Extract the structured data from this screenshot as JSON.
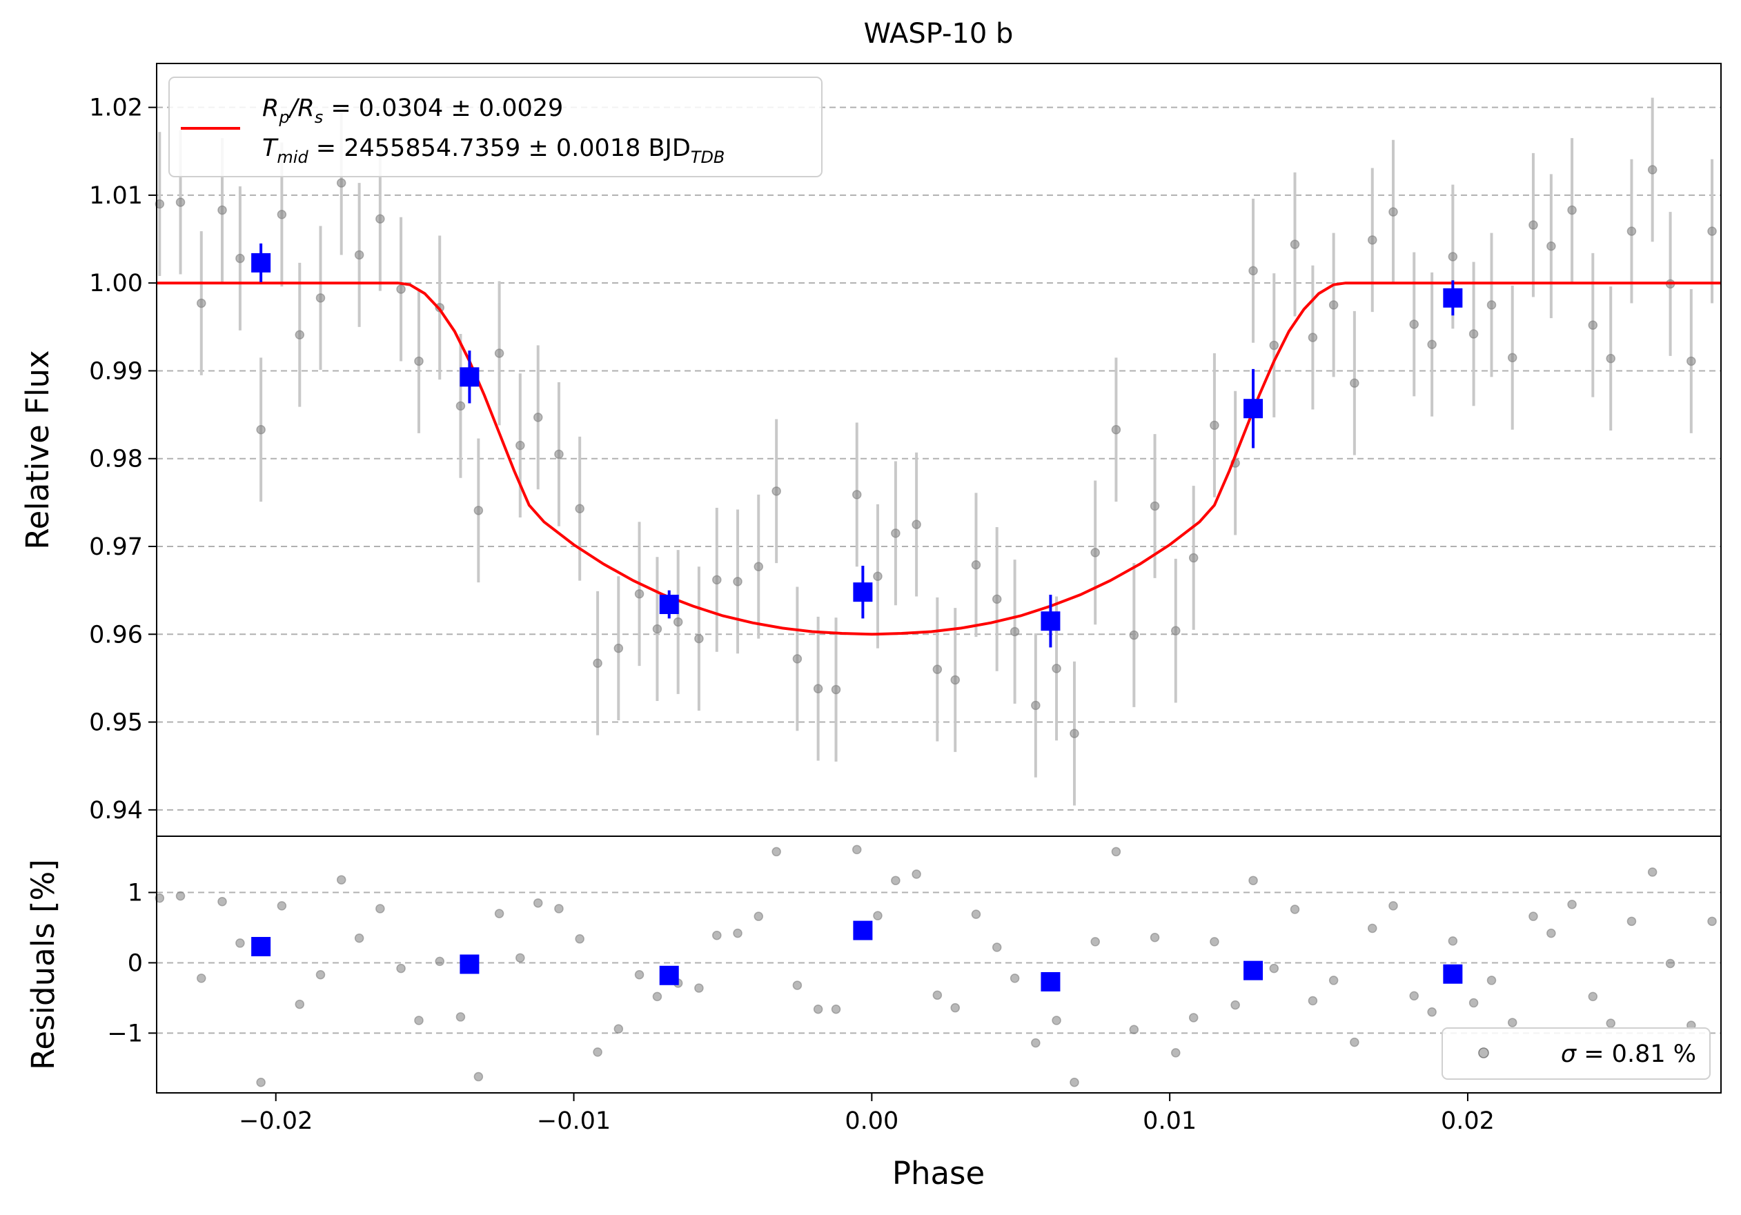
{
  "chart_data": [
    {
      "type": "scatter",
      "title": "WASP-10 b",
      "xlabel": "",
      "ylabel": "Relative Flux",
      "xlim": [
        -0.024,
        0.0285
      ],
      "ylim": [
        0.937,
        1.025
      ],
      "grid": "y-dashed",
      "legend_placement": "top-left",
      "legend": {
        "line1_prefix": "R",
        "line1_sub1": "p",
        "line1_mid": "/R",
        "line1_sub2": "s",
        "line1_value": " = 0.0304 ± 0.0029",
        "line2_prefix": "T",
        "line2_sub": "mid",
        "line2_value": " = 2455854.7359 ± 0.0018 BJD",
        "line2_unit_sub": "TDB"
      },
      "yticks": [
        "0.94",
        "0.95",
        "0.96",
        "0.97",
        "0.98",
        "0.99",
        "1.00",
        "1.01",
        "1.02"
      ],
      "ytick_values": [
        0.94,
        0.95,
        0.96,
        0.97,
        0.98,
        0.99,
        1.0,
        1.01,
        1.02
      ],
      "colors": {
        "raw": "#808080",
        "errorbar": "#c8c8c8",
        "binned": "#0000ff",
        "model": "#ff0000",
        "grid": "#b0b0b0"
      },
      "raw_error": 0.0082,
      "raw_points": [
        [
          -0.0239,
          1.009
        ],
        [
          -0.0232,
          1.0092
        ],
        [
          -0.0225,
          0.9977
        ],
        [
          -0.0218,
          1.0083
        ],
        [
          -0.0212,
          1.0028
        ],
        [
          -0.0205,
          0.9833
        ],
        [
          -0.0198,
          1.0078
        ],
        [
          -0.0192,
          0.9941
        ],
        [
          -0.0185,
          0.9983
        ],
        [
          -0.0178,
          1.0114
        ],
        [
          -0.0172,
          1.0032
        ],
        [
          -0.0165,
          1.0073
        ],
        [
          -0.0158,
          0.9993
        ],
        [
          -0.0152,
          0.9911
        ],
        [
          -0.0145,
          0.9972
        ],
        [
          -0.0138,
          0.986
        ],
        [
          -0.0132,
          0.9741
        ],
        [
          -0.0125,
          0.992
        ],
        [
          -0.0118,
          0.9815
        ],
        [
          -0.0112,
          0.9847
        ],
        [
          -0.0105,
          0.9805
        ],
        [
          -0.0098,
          0.9743
        ],
        [
          -0.0092,
          0.9567
        ],
        [
          -0.0085,
          0.9584
        ],
        [
          -0.0078,
          0.9646
        ],
        [
          -0.0072,
          0.9606
        ],
        [
          -0.0065,
          0.9614
        ],
        [
          -0.0058,
          0.9595
        ],
        [
          -0.0052,
          0.9662
        ],
        [
          -0.0045,
          0.966
        ],
        [
          -0.0038,
          0.9677
        ],
        [
          -0.0032,
          0.9763
        ],
        [
          -0.0025,
          0.9572
        ],
        [
          -0.0018,
          0.9538
        ],
        [
          -0.0012,
          0.9537
        ],
        [
          -0.0005,
          0.9759
        ],
        [
          0.0002,
          0.9666
        ],
        [
          0.0008,
          0.9715
        ],
        [
          0.0015,
          0.9725
        ],
        [
          0.0022,
          0.956
        ],
        [
          0.0028,
          0.9548
        ],
        [
          0.0035,
          0.9679
        ],
        [
          0.0042,
          0.964
        ],
        [
          0.0048,
          0.9603
        ],
        [
          0.0055,
          0.9519
        ],
        [
          0.0062,
          0.9561
        ],
        [
          0.0068,
          0.9487
        ],
        [
          0.0075,
          0.9693
        ],
        [
          0.0082,
          0.9833
        ],
        [
          0.0088,
          0.9599
        ],
        [
          0.0095,
          0.9746
        ],
        [
          0.0102,
          0.9604
        ],
        [
          0.0108,
          0.9687
        ],
        [
          0.0115,
          0.9838
        ],
        [
          0.0122,
          0.9795
        ],
        [
          0.0128,
          1.0014
        ],
        [
          0.0135,
          0.9929
        ],
        [
          0.0142,
          1.0044
        ],
        [
          0.0148,
          0.9938
        ],
        [
          0.0155,
          0.9975
        ],
        [
          0.0162,
          0.9886
        ],
        [
          0.0168,
          1.0049
        ],
        [
          0.0175,
          1.0081
        ],
        [
          0.0182,
          0.9953
        ],
        [
          0.0188,
          0.993
        ],
        [
          0.0195,
          1.003
        ],
        [
          0.0202,
          0.9942
        ],
        [
          0.0208,
          0.9975
        ],
        [
          0.0215,
          0.9915
        ],
        [
          0.0222,
          1.0066
        ],
        [
          0.0228,
          1.0042
        ],
        [
          0.0235,
          1.0083
        ],
        [
          0.0242,
          0.9952
        ],
        [
          0.0248,
          0.9914
        ],
        [
          0.0255,
          1.0059
        ],
        [
          0.0262,
          1.0129
        ],
        [
          0.0268,
          0.9999
        ],
        [
          0.0275,
          0.9911
        ],
        [
          0.0282,
          1.0059
        ]
      ],
      "binned_points": [
        [
          -0.0205,
          1.0023,
          0.0022
        ],
        [
          -0.0135,
          0.9893,
          0.003
        ],
        [
          -0.0068,
          0.9634,
          0.0016
        ],
        [
          -0.0003,
          0.9648,
          0.003
        ],
        [
          0.006,
          0.9615,
          0.003
        ],
        [
          0.0128,
          0.9857,
          0.0045
        ],
        [
          0.0195,
          0.9983,
          0.002
        ]
      ],
      "model_curve": [
        [
          -0.024,
          1.0
        ],
        [
          -0.0159,
          1.0
        ],
        [
          -0.0155,
          0.9998
        ],
        [
          -0.015,
          0.9988
        ],
        [
          -0.0145,
          0.997
        ],
        [
          -0.014,
          0.9945
        ],
        [
          -0.0135,
          0.9911
        ],
        [
          -0.013,
          0.9872
        ],
        [
          -0.0125,
          0.9829
        ],
        [
          -0.012,
          0.9786
        ],
        [
          -0.0115,
          0.9747
        ],
        [
          -0.011,
          0.9728
        ],
        [
          -0.01,
          0.9702
        ],
        [
          -0.009,
          0.968
        ],
        [
          -0.008,
          0.9661
        ],
        [
          -0.007,
          0.9645
        ],
        [
          -0.006,
          0.9632
        ],
        [
          -0.005,
          0.9621
        ],
        [
          -0.004,
          0.9613
        ],
        [
          -0.003,
          0.9607
        ],
        [
          -0.002,
          0.9603
        ],
        [
          -0.001,
          0.9601
        ],
        [
          0.0,
          0.96
        ],
        [
          0.001,
          0.9601
        ],
        [
          0.002,
          0.9603
        ],
        [
          0.003,
          0.9607
        ],
        [
          0.004,
          0.9613
        ],
        [
          0.005,
          0.9621
        ],
        [
          0.006,
          0.9632
        ],
        [
          0.007,
          0.9645
        ],
        [
          0.008,
          0.9661
        ],
        [
          0.009,
          0.968
        ],
        [
          0.01,
          0.9702
        ],
        [
          0.011,
          0.9728
        ],
        [
          0.0115,
          0.9747
        ],
        [
          0.012,
          0.9786
        ],
        [
          0.0125,
          0.9829
        ],
        [
          0.013,
          0.9872
        ],
        [
          0.0135,
          0.9911
        ],
        [
          0.014,
          0.9945
        ],
        [
          0.0145,
          0.997
        ],
        [
          0.015,
          0.9988
        ],
        [
          0.0155,
          0.9998
        ],
        [
          0.0159,
          1.0
        ],
        [
          0.0285,
          1.0
        ]
      ]
    },
    {
      "type": "scatter",
      "xlabel": "Phase",
      "ylabel": "Residuals [%]",
      "xlim": [
        -0.024,
        0.0285
      ],
      "ylim": [
        -1.85,
        1.8
      ],
      "grid": "y-dashed",
      "legend_placement": "bottom-right",
      "legend": {
        "sigma_symbol": "σ",
        "sigma_value": " = 0.81 %"
      },
      "yticks": [
        "−1",
        "0",
        "1"
      ],
      "ytick_values": [
        -1,
        0,
        1
      ],
      "xticks": [
        "−0.02",
        "−0.01",
        "0.00",
        "0.01",
        "0.02"
      ],
      "xtick_values": [
        -0.02,
        -0.01,
        0.0,
        0.01,
        0.02
      ],
      "raw_points": [
        [
          -0.0239,
          0.92
        ],
        [
          -0.0232,
          0.95
        ],
        [
          -0.0225,
          -0.22
        ],
        [
          -0.0218,
          0.87
        ],
        [
          -0.0212,
          0.28
        ],
        [
          -0.0205,
          -1.7
        ],
        [
          -0.0198,
          0.81
        ],
        [
          -0.0192,
          -0.59
        ],
        [
          -0.0185,
          -0.17
        ],
        [
          -0.0178,
          1.18
        ],
        [
          -0.0172,
          0.35
        ],
        [
          -0.0165,
          0.77
        ],
        [
          -0.0158,
          -0.08
        ],
        [
          -0.0152,
          -0.82
        ],
        [
          -0.0145,
          0.02
        ],
        [
          -0.0138,
          -0.77
        ],
        [
          -0.0132,
          -1.62
        ],
        [
          -0.0125,
          0.7
        ],
        [
          -0.0118,
          0.07
        ],
        [
          -0.0112,
          0.85
        ],
        [
          -0.0105,
          0.77
        ],
        [
          -0.0098,
          0.34
        ],
        [
          -0.0092,
          -1.27
        ],
        [
          -0.0085,
          -0.94
        ],
        [
          -0.0078,
          -0.17
        ],
        [
          -0.0072,
          -0.48
        ],
        [
          -0.0065,
          -0.29
        ],
        [
          -0.0058,
          -0.36
        ],
        [
          -0.0052,
          0.39
        ],
        [
          -0.0045,
          0.42
        ],
        [
          -0.0038,
          0.66
        ],
        [
          -0.0032,
          1.58
        ],
        [
          -0.0025,
          -0.32
        ],
        [
          -0.0018,
          -0.66
        ],
        [
          -0.0012,
          -0.66
        ],
        [
          -0.0005,
          1.61
        ],
        [
          0.0002,
          0.67
        ],
        [
          0.0008,
          1.17
        ],
        [
          0.0015,
          1.26
        ],
        [
          0.0022,
          -0.46
        ],
        [
          0.0028,
          -0.64
        ],
        [
          0.0035,
          0.69
        ],
        [
          0.0042,
          0.22
        ],
        [
          0.0048,
          -0.22
        ],
        [
          0.0055,
          -1.14
        ],
        [
          0.0062,
          -0.82
        ],
        [
          0.0068,
          -1.7
        ],
        [
          0.0075,
          0.3
        ],
        [
          0.0082,
          1.58
        ],
        [
          0.0088,
          -0.95
        ],
        [
          0.0095,
          0.36
        ],
        [
          0.0102,
          -1.28
        ],
        [
          0.0108,
          -0.78
        ],
        [
          0.0115,
          0.3
        ],
        [
          0.0122,
          -0.6
        ],
        [
          0.0128,
          1.17
        ],
        [
          0.0135,
          -0.08
        ],
        [
          0.0142,
          0.76
        ],
        [
          0.0148,
          -0.54
        ],
        [
          0.0155,
          -0.25
        ],
        [
          0.0162,
          -1.13
        ],
        [
          0.0168,
          0.49
        ],
        [
          0.0175,
          0.81
        ],
        [
          0.0182,
          -0.47
        ],
        [
          0.0188,
          -0.7
        ],
        [
          0.0195,
          0.31
        ],
        [
          0.0202,
          -0.57
        ],
        [
          0.0208,
          -0.25
        ],
        [
          0.0215,
          -0.85
        ],
        [
          0.0222,
          0.66
        ],
        [
          0.0228,
          0.42
        ],
        [
          0.0235,
          0.83
        ],
        [
          0.0242,
          -0.48
        ],
        [
          0.0248,
          -0.86
        ],
        [
          0.0255,
          0.59
        ],
        [
          0.0262,
          1.29
        ],
        [
          0.0268,
          -0.01
        ],
        [
          0.0275,
          -0.89
        ],
        [
          0.0282,
          0.59
        ]
      ],
      "binned_points": [
        [
          -0.0205,
          0.23
        ],
        [
          -0.0135,
          -0.02
        ],
        [
          -0.0068,
          -0.18
        ],
        [
          -0.0003,
          0.46
        ],
        [
          0.006,
          -0.27
        ],
        [
          0.0128,
          -0.11
        ],
        [
          0.0195,
          -0.16
        ]
      ]
    }
  ]
}
